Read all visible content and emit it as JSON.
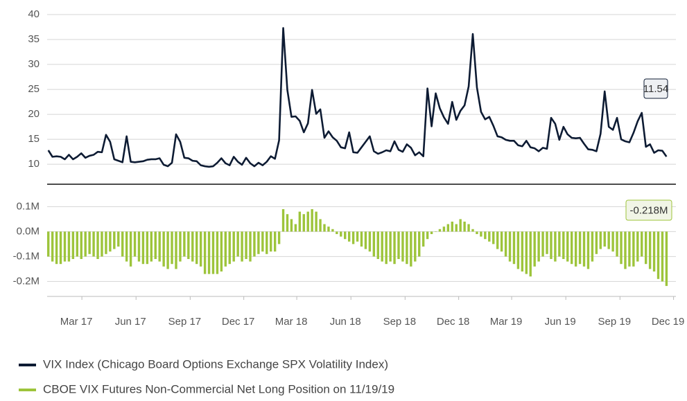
{
  "chart_data": [
    {
      "type": "line",
      "x": [
        "2017-01-03",
        "2017-01-10",
        "2017-01-17",
        "2017-01-24",
        "2017-01-31",
        "2017-02-07",
        "2017-02-14",
        "2017-02-21",
        "2017-02-28",
        "2017-03-07",
        "2017-03-14",
        "2017-03-21",
        "2017-03-28",
        "2017-04-04",
        "2017-04-11",
        "2017-04-18",
        "2017-04-25",
        "2017-05-02",
        "2017-05-09",
        "2017-05-16",
        "2017-05-23",
        "2017-05-30",
        "2017-06-06",
        "2017-06-13",
        "2017-06-20",
        "2017-06-27",
        "2017-07-04",
        "2017-07-11",
        "2017-07-18",
        "2017-07-25",
        "2017-08-01",
        "2017-08-08",
        "2017-08-15",
        "2017-08-22",
        "2017-08-29",
        "2017-09-05",
        "2017-09-12",
        "2017-09-19",
        "2017-09-26",
        "2017-10-03",
        "2017-10-10",
        "2017-10-17",
        "2017-10-24",
        "2017-10-31",
        "2017-11-07",
        "2017-11-14",
        "2017-11-21",
        "2017-11-28",
        "2017-12-05",
        "2017-12-12",
        "2017-12-19",
        "2017-12-26",
        "2018-01-02",
        "2018-01-09",
        "2018-01-16",
        "2018-01-23",
        "2018-01-30",
        "2018-02-06",
        "2018-02-13",
        "2018-02-20",
        "2018-02-27",
        "2018-03-06",
        "2018-03-13",
        "2018-03-20",
        "2018-03-27",
        "2018-04-03",
        "2018-04-10",
        "2018-04-17",
        "2018-04-24",
        "2018-05-01",
        "2018-05-08",
        "2018-05-15",
        "2018-05-22",
        "2018-05-29",
        "2018-06-05",
        "2018-06-12",
        "2018-06-19",
        "2018-06-26",
        "2018-07-03",
        "2018-07-10",
        "2018-07-17",
        "2018-07-24",
        "2018-07-31",
        "2018-08-07",
        "2018-08-14",
        "2018-08-21",
        "2018-08-28",
        "2018-09-04",
        "2018-09-11",
        "2018-09-18",
        "2018-09-25",
        "2018-10-02",
        "2018-10-09",
        "2018-10-16",
        "2018-10-23",
        "2018-10-30",
        "2018-11-06",
        "2018-11-13",
        "2018-11-20",
        "2018-11-27",
        "2018-12-04",
        "2018-12-11",
        "2018-12-18",
        "2018-12-25",
        "2019-01-01",
        "2019-01-08",
        "2019-01-15",
        "2019-01-22",
        "2019-01-29",
        "2019-02-05",
        "2019-02-12",
        "2019-02-19",
        "2019-02-26",
        "2019-03-05",
        "2019-03-12",
        "2019-03-19",
        "2019-03-26",
        "2019-04-02",
        "2019-04-09",
        "2019-04-16",
        "2019-04-23",
        "2019-04-30",
        "2019-05-07",
        "2019-05-14",
        "2019-05-21",
        "2019-05-28",
        "2019-06-04",
        "2019-06-11",
        "2019-06-18",
        "2019-06-25",
        "2019-07-02",
        "2019-07-09",
        "2019-07-16",
        "2019-07-23",
        "2019-07-30",
        "2019-08-06",
        "2019-08-13",
        "2019-08-20",
        "2019-08-27",
        "2019-09-03",
        "2019-09-10",
        "2019-09-17",
        "2019-09-24",
        "2019-10-01",
        "2019-10-08",
        "2019-10-15",
        "2019-10-22",
        "2019-10-29",
        "2019-11-05",
        "2019-11-12",
        "2019-11-19"
      ],
      "series": [
        {
          "name": "VIX Index (Chicago Board Options Exchange SPX Volatility Index)",
          "color": "#0d1b33",
          "values": [
            12.8,
            11.5,
            11.6,
            11.5,
            11.0,
            11.9,
            11.0,
            11.5,
            12.2,
            11.3,
            11.7,
            11.9,
            12.5,
            12.4,
            15.9,
            14.5,
            11.0,
            10.7,
            10.4,
            15.6,
            10.5,
            10.4,
            10.5,
            10.6,
            10.9,
            11.0,
            11.0,
            11.2,
            9.9,
            9.6,
            10.3,
            16.0,
            14.5,
            11.3,
            11.2,
            10.7,
            10.6,
            9.8,
            9.6,
            9.5,
            9.6,
            10.3,
            11.2,
            10.2,
            9.8,
            11.5,
            10.5,
            9.9,
            11.3,
            10.2,
            9.6,
            10.3,
            9.8,
            10.5,
            11.6,
            11.1,
            14.8,
            37.3,
            24.9,
            19.5,
            19.6,
            18.7,
            16.4,
            18.2,
            24.9,
            20.1,
            21.0,
            15.3,
            16.6,
            15.4,
            14.7,
            13.4,
            13.2,
            16.4,
            12.4,
            12.3,
            13.4,
            14.5,
            15.6,
            12.6,
            12.1,
            12.4,
            12.8,
            12.6,
            14.6,
            12.9,
            12.5,
            14.0,
            13.3,
            11.8,
            12.4,
            11.6,
            25.2,
            17.6,
            24.2,
            21.2,
            19.4,
            18.1,
            22.5,
            18.9,
            20.7,
            21.8,
            25.6,
            36.1,
            25.4,
            20.5,
            19.0,
            19.5,
            17.7,
            15.6,
            15.4,
            14.9,
            14.7,
            14.7,
            13.8,
            13.6,
            14.7,
            13.4,
            13.2,
            12.6,
            13.3,
            13.1,
            19.3,
            18.1,
            14.9,
            17.5,
            16.0,
            15.3,
            15.2,
            15.3,
            14.1,
            13.0,
            12.9,
            12.6,
            16.1,
            24.6,
            17.5,
            16.9,
            19.3,
            15.0,
            14.6,
            14.4,
            16.3,
            18.6,
            20.3,
            13.5,
            14.0,
            12.3,
            12.8,
            12.7,
            11.54
          ]
        }
      ],
      "annotation": 11.54,
      "xlim": [
        "2017-01-01",
        "2019-12-05"
      ],
      "ylim": [
        6,
        40
      ],
      "yticks": [
        10,
        15,
        20,
        25,
        30,
        35,
        40
      ],
      "grid": true
    },
    {
      "type": "bar",
      "x": [
        "2017-01-03",
        "2017-01-10",
        "2017-01-17",
        "2017-01-24",
        "2017-01-31",
        "2017-02-07",
        "2017-02-14",
        "2017-02-21",
        "2017-02-28",
        "2017-03-07",
        "2017-03-14",
        "2017-03-21",
        "2017-03-28",
        "2017-04-04",
        "2017-04-11",
        "2017-04-18",
        "2017-04-25",
        "2017-05-02",
        "2017-05-09",
        "2017-05-16",
        "2017-05-23",
        "2017-05-30",
        "2017-06-06",
        "2017-06-13",
        "2017-06-20",
        "2017-06-27",
        "2017-07-04",
        "2017-07-11",
        "2017-07-18",
        "2017-07-25",
        "2017-08-01",
        "2017-08-08",
        "2017-08-15",
        "2017-08-22",
        "2017-08-29",
        "2017-09-05",
        "2017-09-12",
        "2017-09-19",
        "2017-09-26",
        "2017-10-03",
        "2017-10-10",
        "2017-10-17",
        "2017-10-24",
        "2017-10-31",
        "2017-11-07",
        "2017-11-14",
        "2017-11-21",
        "2017-11-28",
        "2017-12-05",
        "2017-12-12",
        "2017-12-19",
        "2017-12-26",
        "2018-01-02",
        "2018-01-09",
        "2018-01-16",
        "2018-01-23",
        "2018-01-30",
        "2018-02-06",
        "2018-02-13",
        "2018-02-20",
        "2018-02-27",
        "2018-03-06",
        "2018-03-13",
        "2018-03-20",
        "2018-03-27",
        "2018-04-03",
        "2018-04-10",
        "2018-04-17",
        "2018-04-24",
        "2018-05-01",
        "2018-05-08",
        "2018-05-15",
        "2018-05-22",
        "2018-05-29",
        "2018-06-05",
        "2018-06-12",
        "2018-06-19",
        "2018-06-26",
        "2018-07-03",
        "2018-07-10",
        "2018-07-17",
        "2018-07-24",
        "2018-07-31",
        "2018-08-07",
        "2018-08-14",
        "2018-08-21",
        "2018-08-28",
        "2018-09-04",
        "2018-09-11",
        "2018-09-18",
        "2018-09-25",
        "2018-10-02",
        "2018-10-09",
        "2018-10-16",
        "2018-10-23",
        "2018-10-30",
        "2018-11-06",
        "2018-11-13",
        "2018-11-20",
        "2018-11-27",
        "2018-12-04",
        "2018-12-11",
        "2018-12-18",
        "2018-12-25",
        "2019-01-01",
        "2019-01-08",
        "2019-01-15",
        "2019-01-22",
        "2019-01-29",
        "2019-02-05",
        "2019-02-12",
        "2019-02-19",
        "2019-02-26",
        "2019-03-05",
        "2019-03-12",
        "2019-03-19",
        "2019-03-26",
        "2019-04-02",
        "2019-04-09",
        "2019-04-16",
        "2019-04-23",
        "2019-04-30",
        "2019-05-07",
        "2019-05-14",
        "2019-05-21",
        "2019-05-28",
        "2019-06-04",
        "2019-06-11",
        "2019-06-18",
        "2019-06-25",
        "2019-07-02",
        "2019-07-09",
        "2019-07-16",
        "2019-07-23",
        "2019-07-30",
        "2019-08-06",
        "2019-08-13",
        "2019-08-20",
        "2019-08-27",
        "2019-09-03",
        "2019-09-10",
        "2019-09-17",
        "2019-09-24",
        "2019-10-01",
        "2019-10-08",
        "2019-10-15",
        "2019-10-22",
        "2019-10-29",
        "2019-11-05",
        "2019-11-12",
        "2019-11-19"
      ],
      "series": [
        {
          "name": "CBOE VIX Futures Non-Commercial Net Long Position on 11/19/19",
          "color": "#9dc43b",
          "values": [
            -0.1,
            -0.12,
            -0.13,
            -0.13,
            -0.12,
            -0.12,
            -0.11,
            -0.1,
            -0.11,
            -0.1,
            -0.09,
            -0.1,
            -0.11,
            -0.1,
            -0.09,
            -0.08,
            -0.07,
            -0.06,
            -0.1,
            -0.12,
            -0.14,
            -0.1,
            -0.12,
            -0.13,
            -0.13,
            -0.12,
            -0.11,
            -0.12,
            -0.14,
            -0.15,
            -0.13,
            -0.15,
            -0.12,
            -0.1,
            -0.11,
            -0.12,
            -0.13,
            -0.14,
            -0.17,
            -0.17,
            -0.17,
            -0.17,
            -0.16,
            -0.14,
            -0.13,
            -0.12,
            -0.1,
            -0.12,
            -0.11,
            -0.12,
            -0.1,
            -0.09,
            -0.08,
            -0.09,
            -0.08,
            -0.08,
            -0.05,
            0.09,
            0.07,
            0.05,
            0.03,
            0.08,
            0.07,
            0.08,
            0.09,
            0.08,
            0.05,
            0.03,
            0.02,
            0.01,
            -0.01,
            -0.02,
            -0.03,
            -0.04,
            -0.05,
            -0.04,
            -0.06,
            -0.07,
            -0.08,
            -0.1,
            -0.11,
            -0.12,
            -0.13,
            -0.12,
            -0.13,
            -0.11,
            -0.12,
            -0.13,
            -0.14,
            -0.12,
            -0.1,
            -0.06,
            -0.03,
            -0.01,
            0.0,
            0.01,
            0.02,
            0.03,
            0.04,
            0.03,
            0.05,
            0.04,
            0.03,
            0.01,
            -0.01,
            -0.02,
            -0.03,
            -0.04,
            -0.05,
            -0.07,
            -0.08,
            -0.1,
            -0.12,
            -0.13,
            -0.15,
            -0.16,
            -0.17,
            -0.18,
            -0.14,
            -0.12,
            -0.1,
            -0.09,
            -0.11,
            -0.12,
            -0.1,
            -0.11,
            -0.12,
            -0.13,
            -0.14,
            -0.13,
            -0.14,
            -0.15,
            -0.12,
            -0.09,
            -0.07,
            -0.06,
            -0.07,
            -0.08,
            -0.1,
            -0.13,
            -0.15,
            -0.14,
            -0.14,
            -0.12,
            -0.1,
            -0.13,
            -0.15,
            -0.16,
            -0.19,
            -0.2,
            -0.218
          ]
        }
      ],
      "annotation": {
        "value": -0.218,
        "label": "-0.218M"
      },
      "xlim": [
        "2017-01-01",
        "2019-12-05"
      ],
      "xticks": [
        {
          "value": "2017-03-01",
          "label": "Mar 17"
        },
        {
          "value": "2017-06-01",
          "label": "Jun 17"
        },
        {
          "value": "2017-09-01",
          "label": "Sep 17"
        },
        {
          "value": "2017-12-01",
          "label": "Dec 17"
        },
        {
          "value": "2018-03-01",
          "label": "Mar 18"
        },
        {
          "value": "2018-06-01",
          "label": "Jun 18"
        },
        {
          "value": "2018-09-01",
          "label": "Sep 18"
        },
        {
          "value": "2018-12-01",
          "label": "Dec 18"
        },
        {
          "value": "2019-03-01",
          "label": "Mar 19"
        },
        {
          "value": "2019-06-01",
          "label": "Jun 19"
        },
        {
          "value": "2019-09-01",
          "label": "Sep 19"
        },
        {
          "value": "2019-12-01",
          "label": "Dec 19"
        }
      ],
      "ylim": [
        -0.26,
        0.19
      ],
      "yticks": [
        {
          "value": -0.2,
          "label": "-0.2M"
        },
        {
          "value": -0.1,
          "label": "-0.1M"
        },
        {
          "value": 0,
          "label": "0.0M"
        },
        {
          "value": 0.1,
          "label": "0.1M"
        }
      ],
      "grid": true
    }
  ]
}
